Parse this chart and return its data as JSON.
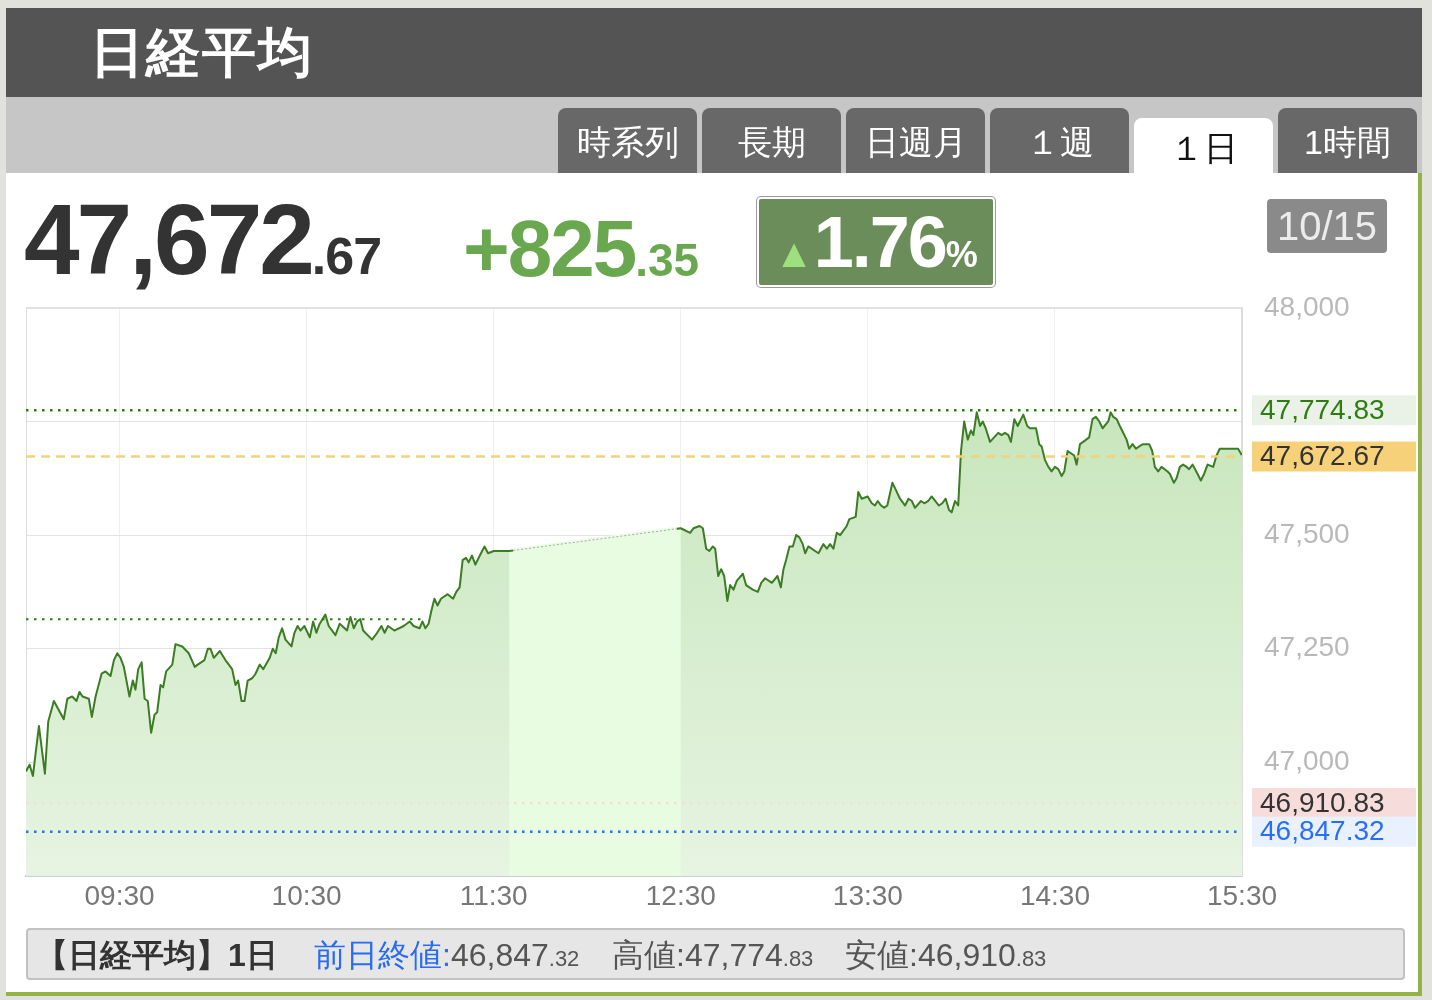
{
  "chart_data": {
    "type": "area",
    "title": "日経平均",
    "annotations": [
      "時系列",
      "長期",
      "日週月",
      "１週",
      "１日",
      "1時間",
      "47,672.67",
      "+825.35",
      "▲1.76%",
      "10/15",
      "【日経平均】1日",
      "前日終値:46,847.32",
      "高値:47,774.83",
      "安値:46,910.83"
    ],
    "series": [
      {
        "color": "#3a7d22",
        "x": [
          9,
          9.019,
          9.037,
          9.069,
          9.101,
          9.119,
          9.149,
          9.202,
          9.221,
          9.247,
          9.27,
          9.286,
          9.302,
          9.336,
          9.352,
          9.372,
          9.404,
          9.425,
          9.452,
          9.47,
          9.488,
          9.505,
          9.523,
          9.553,
          9.571,
          9.585,
          9.6,
          9.618,
          9.634,
          9.651,
          9.669,
          9.687,
          9.701,
          9.719,
          9.733,
          9.749,
          9.782,
          9.799,
          9.835,
          9.87,
          9.902,
          9.918,
          9.954,
          9.972,
          9.986,
          10.004,
          10.036,
          10.066,
          10.102,
          10.12,
          10.134,
          10.152,
          10.168,
          10.185,
          10.209,
          10.227,
          10.249,
          10.268,
          10.303,
          10.319,
          10.335,
          10.351,
          10.369,
          10.387,
          10.419,
          10.435,
          10.452,
          10.467,
          10.488,
          10.517,
          10.535,
          10.552,
          10.57,
          10.6,
          10.618,
          10.654,
          10.677,
          10.716,
          10.734,
          10.752,
          10.77,
          10.787,
          10.802,
          10.85,
          10.877,
          10.9,
          10.917,
          10.935,
          10.969,
          11.019,
          11.051,
          11.072,
          11.104,
          11.119,
          11.135,
          11.152,
          11.165,
          11.183,
          11.2,
          11.218,
          11.254,
          11.283,
          11.3,
          11.318,
          11.334,
          11.352,
          11.366,
          11.384,
          11.402,
          11.438,
          11.451,
          11.47,
          11.5,
          11.583,
          12.5,
          12.55,
          12.568,
          12.6,
          12.618,
          12.636,
          12.653,
          12.671,
          12.684,
          12.7,
          12.716,
          12.732,
          12.749,
          12.764,
          12.782,
          12.8,
          12.832,
          12.849,
          12.885,
          12.912,
          12.93,
          12.951,
          12.987,
          13.017,
          13.035,
          13.049,
          13.063,
          13.081,
          13.099,
          13.117,
          13.134,
          13.152,
          13.165,
          13.182,
          13.218,
          13.236,
          13.262,
          13.281,
          13.298,
          13.316,
          13.334,
          13.352,
          13.387,
          13.401,
          13.435,
          13.449,
          13.467,
          13.499,
          13.521,
          13.538,
          13.553,
          13.571,
          13.587,
          13.604,
          13.631,
          13.649,
          13.672,
          13.699,
          13.717,
          13.735,
          13.752,
          13.784,
          13.802,
          13.823,
          13.841,
          13.88,
          13.898,
          13.916,
          13.934,
          13.948,
          13.966,
          13.983,
          13.998,
          14.015,
          14.034,
          14.051,
          14.064,
          14.082,
          14.1,
          14.114,
          14.13,
          14.153,
          14.197,
          14.215,
          14.233,
          14.251,
          14.265,
          14.283,
          14.301,
          14.331,
          14.352,
          14.367,
          14.399,
          14.416,
          14.429,
          14.447,
          14.465,
          14.482,
          14.5,
          14.518,
          14.536,
          14.55,
          14.568,
          14.603,
          14.616,
          14.634,
          14.651,
          14.683,
          14.701,
          14.719,
          14.737,
          14.755,
          14.785,
          14.798,
          14.812,
          14.83,
          14.847,
          14.865,
          14.883,
          14.897,
          14.915,
          14.933,
          14.95,
          14.972,
          15.004,
          15.02,
          15.034,
          15.052,
          15.07,
          15.102,
          15.114,
          15.136,
          15.15,
          15.168,
          15.185,
          15.204,
          15.217,
          15.236,
          15.262,
          15.28,
          15.298,
          15.316,
          15.346,
          15.364,
          15.381,
          15.479,
          15.5
        ],
        "values": [
          46980,
          46995,
          46970,
          47080,
          46975,
          47090,
          47135,
          47095,
          47140,
          47145,
          47135,
          47155,
          47145,
          47140,
          47100,
          47145,
          47195,
          47200,
          47190,
          47225,
          47240,
          47230,
          47210,
          47145,
          47180,
          47160,
          47205,
          47220,
          47140,
          47135,
          47065,
          47105,
          47110,
          47170,
          47165,
          47200,
          47215,
          47260,
          47255,
          47240,
          47210,
          47215,
          47225,
          47250,
          47250,
          47230,
          47245,
          47225,
          47205,
          47170,
          47180,
          47135,
          47135,
          47180,
          47185,
          47195,
          47215,
          47205,
          47230,
          47250,
          47240,
          47275,
          47295,
          47270,
          47255,
          47285,
          47300,
          47290,
          47300,
          47275,
          47310,
          47285,
          47305,
          47325,
          47300,
          47280,
          47305,
          47290,
          47320,
          47295,
          47310,
          47315,
          47290,
          47270,
          47285,
          47300,
          47285,
          47300,
          47290,
          47300,
          47310,
          47300,
          47295,
          47310,
          47295,
          47305,
          47330,
          47360,
          47345,
          47360,
          47370,
          47360,
          47375,
          47385,
          47445,
          47450,
          47440,
          47455,
          47435,
          47465,
          47475,
          47460,
          47465,
          47465,
          47515,
          47505,
          47515,
          47520,
          47515,
          47470,
          47465,
          47475,
          47470,
          47410,
          47425,
          47410,
          47355,
          47390,
          47380,
          47400,
          47415,
          47390,
          47380,
          47375,
          47395,
          47405,
          47395,
          47410,
          47385,
          47425,
          47445,
          47475,
          47475,
          47500,
          47495,
          47480,
          47460,
          47475,
          47465,
          47460,
          47480,
          47470,
          47480,
          47470,
          47505,
          47500,
          47520,
          47535,
          47540,
          47595,
          47580,
          47585,
          47570,
          47565,
          47575,
          47565,
          47560,
          47565,
          47615,
          47600,
          47580,
          47565,
          47580,
          47575,
          47560,
          47575,
          47570,
          47575,
          47585,
          47565,
          47570,
          47580,
          47555,
          47550,
          47575,
          47565,
          47685,
          47750,
          47710,
          47730,
          47720,
          47770,
          47740,
          47750,
          47735,
          47705,
          47725,
          47720,
          47725,
          47720,
          47705,
          47755,
          47740,
          47765,
          47740,
          47735,
          47735,
          47700,
          47695,
          47665,
          47650,
          47640,
          47650,
          47645,
          47630,
          47640,
          47685,
          47675,
          47655,
          47700,
          47705,
          47715,
          47755,
          47760,
          47750,
          47735,
          47750,
          47770,
          47760,
          47755,
          47740,
          47725,
          47710,
          47690,
          47700,
          47690,
          47695,
          47700,
          47700,
          47685,
          47650,
          47640,
          47650,
          47640,
          47635,
          47615,
          47625,
          47650,
          47655,
          47650,
          47645,
          47655,
          47635,
          47620,
          47635,
          47655,
          47650,
          47675,
          47690,
          47690,
          47675
        ]
      },
      {
        "type": "line",
        "color": "#2e7d12",
        "line_style": "dotted",
        "x": [
          9,
          11.13
        ],
        "values": [
          47315,
          47315
        ]
      }
    ],
    "xlim": [
      9,
      15.5
    ],
    "xticks": [
      {
        "value": 9.5,
        "label": "09:30"
      },
      {
        "value": 10.5,
        "label": "10:30"
      },
      {
        "value": 11.5,
        "label": "11:30"
      },
      {
        "value": 12.5,
        "label": "12:30"
      },
      {
        "value": 13.5,
        "label": "13:30"
      },
      {
        "value": 14.5,
        "label": "14:30"
      },
      {
        "value": 15.5,
        "label": "15:30"
      }
    ],
    "ylim": [
      46750,
      48000
    ],
    "yticks": [
      {
        "value": 47000,
        "label": "47,000"
      },
      {
        "value": 47250,
        "label": "47,250"
      },
      {
        "value": 47500,
        "label": "47,500"
      },
      {
        "value": 47750,
        "label": null
      },
      {
        "value": 48000,
        "label": "48,000"
      }
    ],
    "grid": true,
    "marker": "none",
    "ref_lines": [
      {
        "axis": "y",
        "value": 47774.83,
        "label": "47,774.83",
        "color": "#2e7d12",
        "line_style": "dotted"
      },
      {
        "axis": "y",
        "value": 47672.67,
        "label": "47,672.67",
        "color": "#f7d07a",
        "line_style": "dashed"
      },
      {
        "axis": "y",
        "value": 46910.83,
        "label": "46,910.83",
        "color": "#f7dcdc",
        "line_style": "dotted"
      },
      {
        "axis": "y",
        "value": 46847.32,
        "label": "46,847.32",
        "color": "#2a6ef5",
        "line_style": "dotted"
      }
    ],
    "bands": [
      {
        "axis": "x",
        "from": 11.583,
        "to": 12.5,
        "color": "#e8fce2"
      }
    ]
  }
}
